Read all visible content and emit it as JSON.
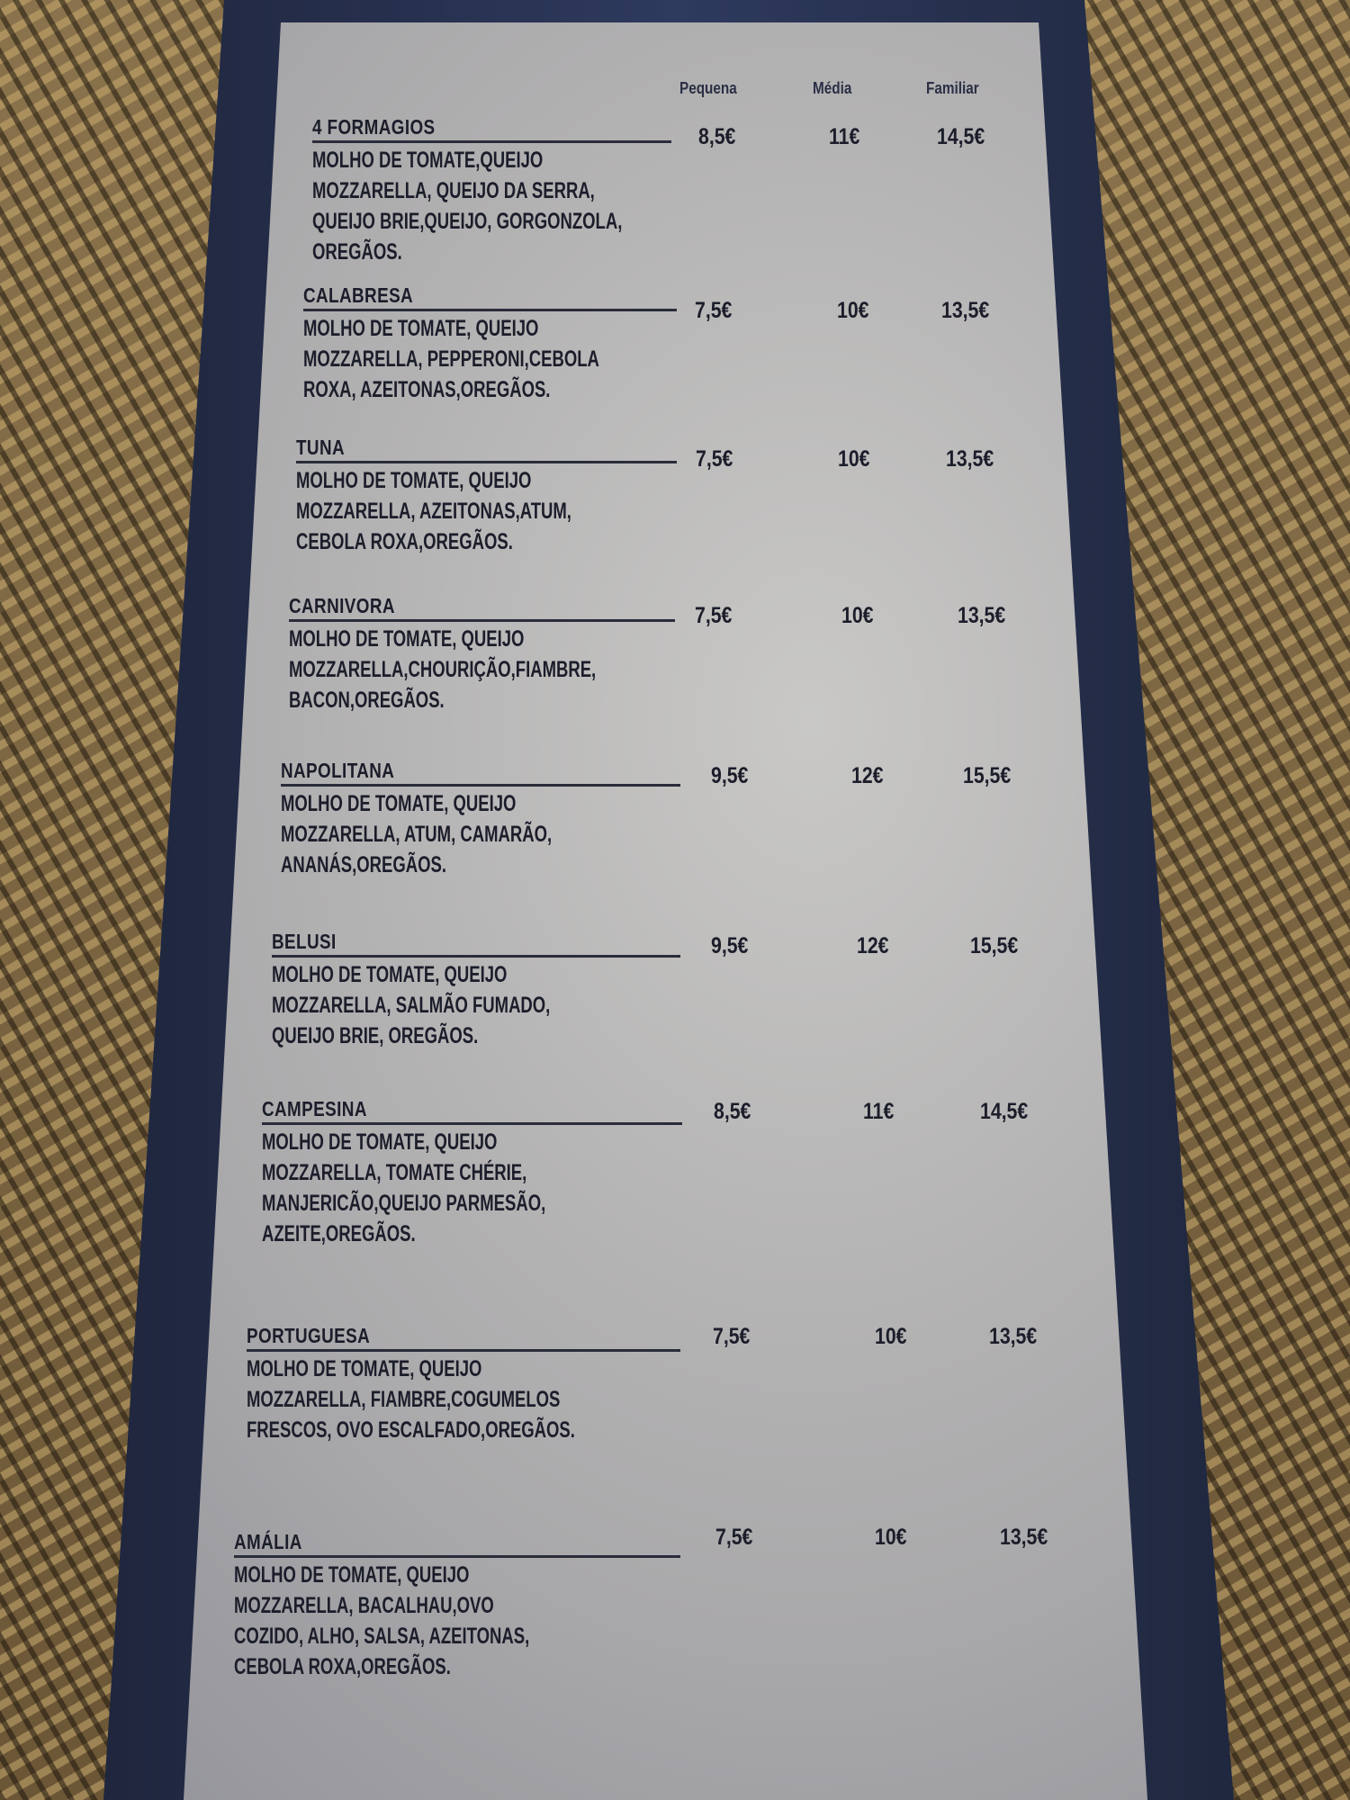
{
  "columns": [
    "Pequena",
    "Média",
    "Familiar"
  ],
  "items": [
    {
      "name": "4 FORMAGIOS",
      "lines": [
        "MOLHO DE TOMATE,QUEIJO",
        "MOZZARELLA, QUEIJO DA SERRA,",
        "QUEIJO BRIE,QUEIJO, GORGONZOLA,",
        "OREGÃOS."
      ],
      "prices": [
        "8,5€",
        "11€",
        "14,5€"
      ]
    },
    {
      "name": "CALABRESA",
      "lines": [
        "MOLHO DE TOMATE, QUEIJO",
        "MOZZARELLA, PEPPERONI,CEBOLA",
        "ROXA, AZEITONAS,OREGÃOS."
      ],
      "prices": [
        "7,5€",
        "10€",
        "13,5€"
      ]
    },
    {
      "name": "TUNA",
      "lines": [
        "MOLHO DE TOMATE, QUEIJO",
        "MOZZARELLA, AZEITONAS,ATUM,",
        "CEBOLA ROXA,OREGÃOS."
      ],
      "prices": [
        "7,5€",
        "10€",
        "13,5€"
      ]
    },
    {
      "name": "CARNIVORA",
      "lines": [
        "MOLHO DE TOMATE, QUEIJO",
        "MOZZARELLA,CHOURIÇÃO,FIAMBRE,",
        "BACON,OREGÃOS."
      ],
      "prices": [
        "7,5€",
        "10€",
        "13,5€"
      ]
    },
    {
      "name": "NAPOLITANA",
      "lines": [
        "MOLHO DE TOMATE, QUEIJO",
        "MOZZARELLA, ATUM, CAMARÃO,",
        "ANANÁS,OREGÃOS."
      ],
      "prices": [
        "9,5€",
        "12€",
        "15,5€"
      ]
    },
    {
      "name": "BELUSI",
      "lines": [
        "MOLHO DE TOMATE, QUEIJO",
        "MOZZARELLA, SALMÃO FUMADO,",
        "QUEIJO BRIE, OREGÃOS."
      ],
      "prices": [
        "9,5€",
        "12€",
        "15,5€"
      ]
    },
    {
      "name": "CAMPESINA",
      "lines": [
        "MOLHO DE TOMATE, QUEIJO",
        "MOZZARELLA, TOMATE CHÉRIE,",
        "MANJERICÃO,QUEIJO PARMESÃO,",
        "AZEITE,OREGÃOS."
      ],
      "prices": [
        "8,5€",
        "11€",
        "14,5€"
      ]
    },
    {
      "name": "PORTUGUESA",
      "lines": [
        "MOLHO DE TOMATE, QUEIJO",
        "MOZZARELLA, FIAMBRE,COGUMELOS",
        "FRESCOS, OVO ESCALFADO,OREGÃOS."
      ],
      "prices": [
        "7,5€",
        "10€",
        "13,5€"
      ]
    },
    {
      "name": "AMÁLIA",
      "lines": [
        "MOLHO DE TOMATE, QUEIJO",
        "MOZZARELLA, BACALHAU,OVO",
        "COZIDO, ALHO, SALSA, AZEITONAS,",
        "CEBOLA ROXA,OREGÃOS."
      ],
      "prices": [
        "7,5€",
        "10€",
        "13,5€"
      ]
    }
  ]
}
